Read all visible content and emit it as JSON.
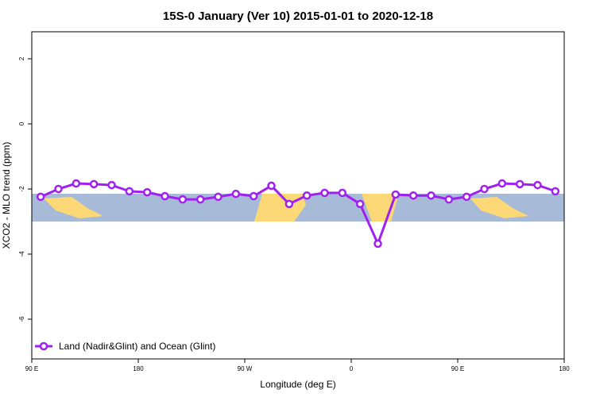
{
  "chart_data": {
    "type": "line",
    "title": "15S-0 January (Ver 10)   2015-01-01 to 2020-12-18",
    "x_label": "Longitude (deg E)",
    "y_label": "XCO2 - MLO trend (ppm)",
    "x": [
      97.5,
      112.5,
      127.5,
      142.5,
      157.5,
      172.5,
      187.5,
      202.5,
      217.5,
      232.5,
      247.5,
      262.5,
      277.5,
      292.5,
      307.5,
      322.5,
      337.5,
      352.5,
      367.5,
      382.5,
      397.5,
      412.5,
      427.5,
      442.5,
      457.5,
      472.5,
      487.5,
      502.5,
      517.5,
      532.5
    ],
    "series": [
      {
        "name": "Land (Nadir&Glint) and Ocean (Glint)",
        "color": "#a020f0",
        "values": [
          -2.24,
          -2.0,
          -1.83,
          -1.85,
          -1.88,
          -2.07,
          -2.1,
          -2.22,
          -2.32,
          -2.32,
          -2.24,
          -2.15,
          -2.22,
          -1.9,
          -2.46,
          -2.2,
          -2.12,
          -2.12,
          -2.46,
          -3.68,
          -2.17,
          -2.2,
          -2.2,
          -2.32,
          -2.24,
          -2.0,
          -1.83,
          -1.85,
          -1.88,
          -2.07
        ]
      }
    ],
    "xlim": [
      90,
      540
    ],
    "xticks": [
      {
        "value": 90,
        "label": "90 E"
      },
      {
        "value": 180,
        "label": "180"
      },
      {
        "value": 270,
        "label": "90 W"
      },
      {
        "value": 360,
        "label": "0"
      },
      {
        "value": 450,
        "label": "90 E"
      },
      {
        "value": 540,
        "label": "180"
      }
    ],
    "ylim": [
      -7.22,
      2.83
    ],
    "yticks": [
      -6,
      -4,
      -2,
      0,
      2
    ],
    "legend": "bottom-left"
  }
}
